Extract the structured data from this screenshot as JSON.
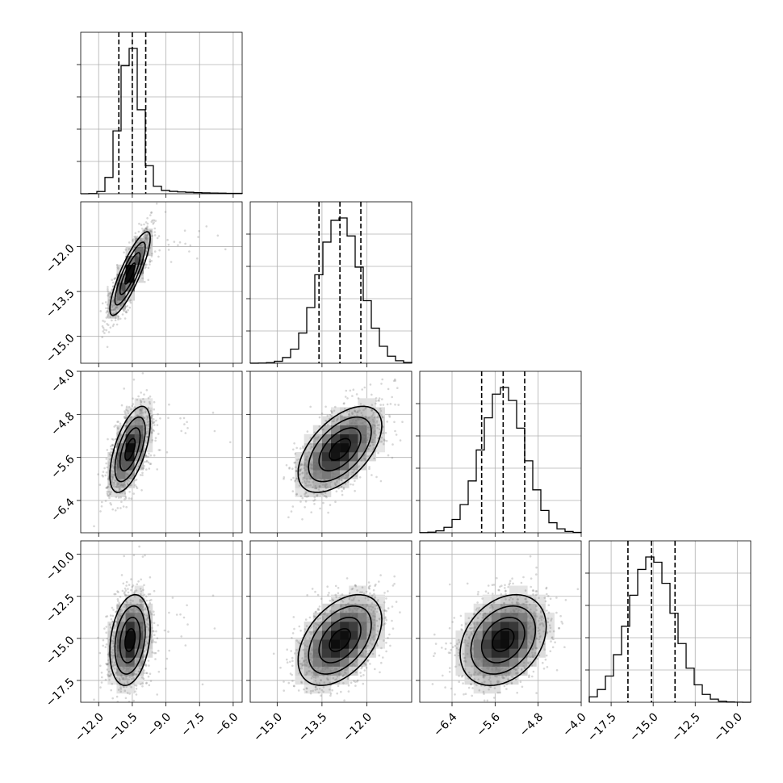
{
  "chart_data": {
    "type": "scatter",
    "variant": "corner",
    "title": "",
    "grid": true,
    "legend": "none",
    "params": [
      {
        "range": [
          -12.8,
          -5.6
        ],
        "ticks": [
          -12.0,
          -10.5,
          -9.0,
          -7.5,
          -6.0
        ],
        "tick_labels": [
          "−12.0",
          "−10.5",
          "−9.0",
          "−7.5",
          "−6.0"
        ],
        "quantiles": [
          -11.1,
          -10.5,
          -9.9
        ],
        "mean": -10.6,
        "sd": 0.45,
        "tail": 1.1
      },
      {
        "range": [
          -15.9,
          -10.5
        ],
        "ticks": [
          -15.0,
          -13.5,
          -12.0
        ],
        "tick_labels": [
          "−15.0",
          "−13.5",
          "−12.0"
        ],
        "quantiles": [
          -13.6,
          -12.9,
          -12.2
        ],
        "mean": -12.9,
        "sd": 0.7,
        "tail": 0
      },
      {
        "range": [
          -7.0,
          -4.0
        ],
        "ticks": [
          -6.4,
          -5.6,
          -4.8,
          -4.0
        ],
        "tick_labels": [
          "−6.4",
          "−5.6",
          "−4.8",
          "−4.0"
        ],
        "quantiles": [
          -5.85,
          -5.45,
          -5.05
        ],
        "mean": -5.45,
        "sd": 0.4,
        "tail": 0
      },
      {
        "range": [
          -18.8,
          -9.2
        ],
        "ticks": [
          -17.5,
          -15.0,
          -12.5,
          -10.0
        ],
        "tick_labels": [
          "−17.5",
          "−15.0",
          "−12.5",
          "−10.0"
        ],
        "quantiles": [
          -16.5,
          -15.1,
          -13.7
        ],
        "mean": -15.1,
        "sd": 1.35,
        "tail": 0
      }
    ],
    "y_ticks": {
      "1": [
        -12.0,
        -13.5,
        -15.0
      ],
      "2": [
        -4.0,
        -4.8,
        -5.6,
        -6.4
      ],
      "3": [
        -10.0,
        -12.5,
        -15.0,
        -17.5
      ]
    },
    "y_tick_labels": {
      "1": [
        "−12.0",
        "−13.5",
        "−15.0"
      ],
      "2": [
        "−4.0",
        "−4.8",
        "−5.6",
        "−6.4"
      ],
      "3": [
        "−10.0",
        "−12.5",
        "−15.0",
        "−17.5"
      ]
    },
    "correlations": [
      [
        1.0,
        0.85,
        0.6,
        0.25
      ],
      [
        0.85,
        1.0,
        0.55,
        0.45
      ],
      [
        0.6,
        0.55,
        1.0,
        0.3
      ],
      [
        0.25,
        0.45,
        0.3,
        1.0
      ]
    ],
    "hist_bins": 20,
    "scatter_points_per_panel": 1200
  }
}
